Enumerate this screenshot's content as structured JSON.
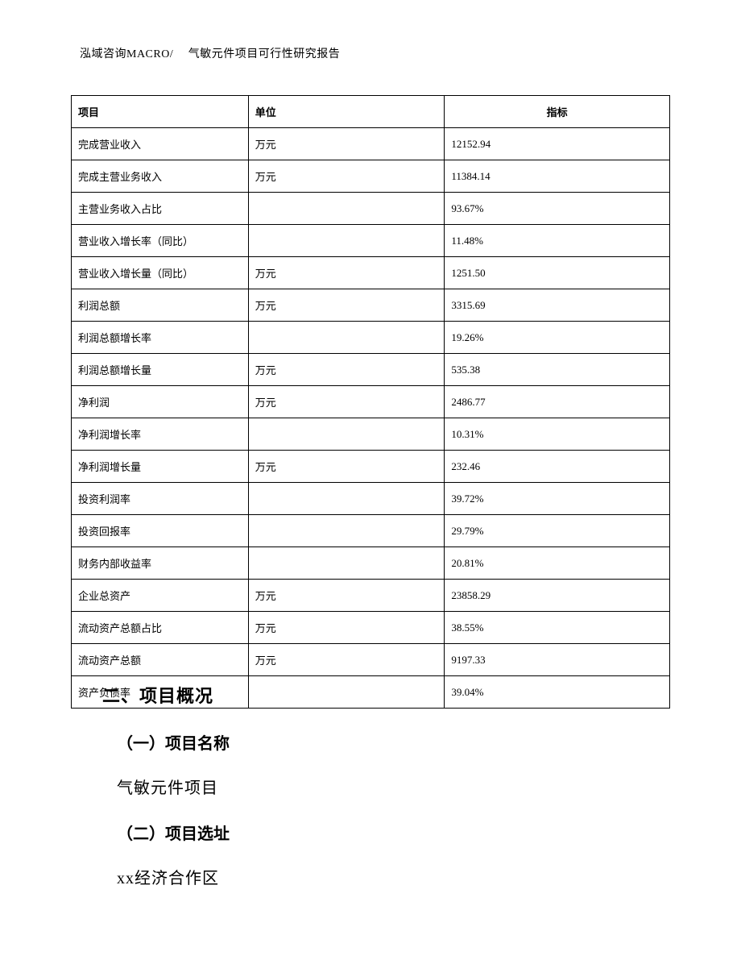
{
  "header": {
    "text": "泓域咨询MACRO/　 气敏元件项目可行性研究报告"
  },
  "table": {
    "columns": [
      "项目",
      "单位",
      "指标"
    ],
    "rows": [
      [
        "完成营业收入",
        "万元",
        "12152.94"
      ],
      [
        "完成主营业务收入",
        "万元",
        "11384.14"
      ],
      [
        "主营业务收入占比",
        "",
        "93.67%"
      ],
      [
        "营业收入增长率（同比）",
        "",
        "11.48%"
      ],
      [
        "营业收入增长量（同比）",
        "万元",
        "1251.50"
      ],
      [
        "利润总额",
        "万元",
        "3315.69"
      ],
      [
        "利润总额增长率",
        "",
        "19.26%"
      ],
      [
        "利润总额增长量",
        "万元",
        "535.38"
      ],
      [
        "净利润",
        "万元",
        "2486.77"
      ],
      [
        "净利润增长率",
        "",
        "10.31%"
      ],
      [
        "净利润增长量",
        "万元",
        "232.46"
      ],
      [
        "投资利润率",
        "",
        "39.72%"
      ],
      [
        "投资回报率",
        "",
        "29.79%"
      ],
      [
        "财务内部收益率",
        "",
        "20.81%"
      ],
      [
        "企业总资产",
        "万元",
        "23858.29"
      ],
      [
        "流动资产总额占比",
        "万元",
        "38.55%"
      ],
      [
        "流动资产总额",
        "万元",
        "9197.33"
      ],
      [
        "资产负债率",
        "",
        "39.04%"
      ]
    ]
  },
  "content": {
    "section_title": "二、项目概况",
    "sub1_title": "（一）项目名称",
    "sub1_text": "气敏元件项目",
    "sub2_title": "（二）项目选址",
    "sub2_text": "xx经济合作区"
  }
}
